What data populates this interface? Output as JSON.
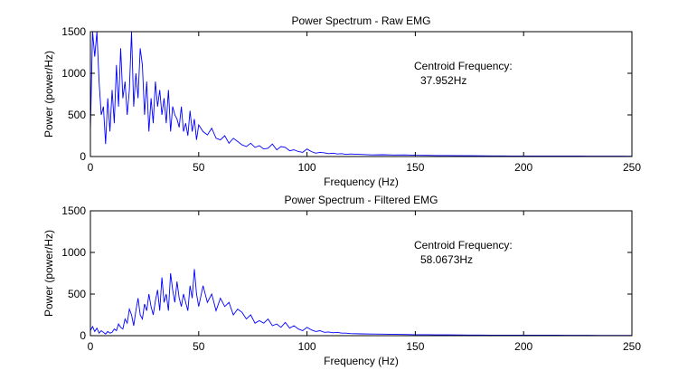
{
  "chart_data": [
    {
      "type": "line",
      "title": "Power Spectrum - Raw EMG",
      "xlabel": "Frequency (Hz)",
      "ylabel": "Power (power/Hz)",
      "xlim": [
        0,
        250
      ],
      "ylim": [
        0,
        1500
      ],
      "xticks": [
        "0",
        "50",
        "100",
        "150",
        "200",
        "250"
      ],
      "yticks": [
        "0",
        "500",
        "1000",
        "1500"
      ],
      "grid": false,
      "line_color": "#0000ff",
      "annotation": {
        "label": "Centroid Frequency:",
        "value": "37.952Hz"
      },
      "series": [
        {
          "x": [
            0,
            1,
            2,
            3,
            4,
            5,
            6,
            7,
            8,
            9,
            10,
            11,
            12,
            13,
            14,
            15,
            16,
            17,
            18,
            19,
            20,
            21,
            22,
            23,
            24,
            25,
            26,
            27,
            28,
            29,
            30,
            31,
            32,
            33,
            34,
            35,
            36,
            37,
            38,
            39,
            40,
            41,
            42,
            43,
            44,
            45,
            46,
            47,
            48,
            49,
            50,
            52,
            54,
            56,
            58,
            60,
            62,
            64,
            66,
            68,
            70,
            72,
            74,
            76,
            78,
            80,
            82,
            84,
            86,
            88,
            90,
            92,
            94,
            96,
            98,
            100,
            102,
            104,
            106,
            108,
            110,
            112,
            114,
            116,
            118,
            120,
            125,
            130,
            135,
            140,
            145,
            150,
            155,
            160,
            165,
            170,
            175,
            180,
            185,
            190,
            195,
            200,
            205,
            210,
            215,
            220,
            225,
            230,
            235,
            240,
            245,
            250
          ],
          "values": [
            300,
            1500,
            1200,
            1500,
            900,
            500,
            600,
            150,
            700,
            300,
            800,
            400,
            1100,
            600,
            1300,
            700,
            900,
            500,
            800,
            1500,
            600,
            1000,
            700,
            1300,
            1100,
            500,
            900,
            300,
            700,
            400,
            900,
            600,
            800,
            500,
            700,
            400,
            800,
            300,
            600,
            500,
            450,
            350,
            600,
            300,
            400,
            250,
            550,
            300,
            450,
            200,
            380,
            300,
            260,
            340,
            220,
            200,
            250,
            160,
            220,
            180,
            140,
            120,
            160,
            110,
            130,
            90,
            100,
            150,
            80,
            120,
            110,
            70,
            80,
            60,
            50,
            90,
            60,
            40,
            50,
            45,
            35,
            40,
            30,
            35,
            25,
            30,
            25,
            20,
            22,
            18,
            20,
            15,
            14,
            12,
            12,
            10,
            10,
            9,
            8,
            8,
            7,
            7,
            6,
            6,
            5,
            5,
            5,
            4,
            4,
            4,
            4,
            3
          ]
        }
      ]
    },
    {
      "type": "line",
      "title": "Power Spectrum - Filtered EMG",
      "xlabel": "Frequency (Hz)",
      "ylabel": "Power (power/Hz)",
      "xlim": [
        0,
        250
      ],
      "ylim": [
        0,
        1500
      ],
      "xticks": [
        "0",
        "50",
        "100",
        "150",
        "200",
        "250"
      ],
      "yticks": [
        "0",
        "500",
        "1000",
        "1500"
      ],
      "grid": false,
      "line_color": "#0000ff",
      "annotation": {
        "label": "Centroid Frequency:",
        "value": "58.0673Hz"
      },
      "series": [
        {
          "x": [
            0,
            1,
            2,
            3,
            4,
            5,
            6,
            7,
            8,
            9,
            10,
            11,
            12,
            13,
            14,
            15,
            16,
            17,
            18,
            19,
            20,
            21,
            22,
            23,
            24,
            25,
            26,
            27,
            28,
            29,
            30,
            31,
            32,
            33,
            34,
            35,
            36,
            37,
            38,
            39,
            40,
            41,
            42,
            43,
            44,
            45,
            46,
            47,
            48,
            49,
            50,
            52,
            54,
            56,
            58,
            60,
            62,
            64,
            66,
            68,
            70,
            72,
            74,
            76,
            78,
            80,
            82,
            84,
            86,
            88,
            90,
            92,
            94,
            96,
            98,
            100,
            102,
            104,
            106,
            108,
            110,
            112,
            114,
            116,
            118,
            120,
            125,
            130,
            135,
            140,
            145,
            150,
            155,
            160,
            165,
            170,
            175,
            180,
            185,
            190,
            195,
            200,
            205,
            210,
            215,
            220,
            225,
            230,
            235,
            240,
            245,
            250
          ],
          "values": [
            60,
            110,
            50,
            90,
            30,
            60,
            40,
            20,
            50,
            30,
            40,
            80,
            60,
            140,
            100,
            80,
            200,
            150,
            320,
            250,
            120,
            300,
            450,
            250,
            200,
            380,
            300,
            500,
            350,
            250,
            420,
            550,
            300,
            700,
            400,
            500,
            300,
            750,
            550,
            400,
            650,
            450,
            350,
            500,
            400,
            300,
            600,
            450,
            800,
            500,
            350,
            600,
            400,
            500,
            300,
            450,
            350,
            400,
            250,
            320,
            280,
            200,
            250,
            150,
            180,
            150,
            200,
            120,
            140,
            100,
            160,
            90,
            120,
            80,
            60,
            100,
            70,
            50,
            60,
            40,
            45,
            35,
            40,
            30,
            30,
            25,
            22,
            20,
            18,
            15,
            14,
            12,
            12,
            10,
            10,
            9,
            8,
            8,
            7,
            7,
            6,
            6,
            5,
            5,
            5,
            4,
            4,
            4,
            3,
            3,
            3,
            3
          ]
        }
      ]
    }
  ]
}
